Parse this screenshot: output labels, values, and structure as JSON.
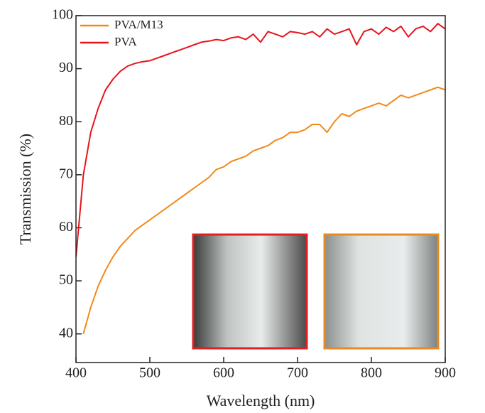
{
  "chart_data": {
    "type": "line",
    "x_label": "Wavelength (nm)",
    "y_label": "Transmission (%)",
    "x": [
      400,
      410,
      420,
      430,
      440,
      450,
      460,
      470,
      480,
      490,
      500,
      510,
      520,
      530,
      540,
      550,
      560,
      570,
      580,
      590,
      600,
      610,
      620,
      630,
      640,
      650,
      660,
      670,
      680,
      690,
      700,
      710,
      720,
      730,
      740,
      750,
      760,
      770,
      780,
      790,
      800,
      810,
      820,
      830,
      840,
      850,
      860,
      870,
      880,
      890,
      900
    ],
    "series": [
      {
        "name": "PVA/M13",
        "color": "#f28a1a",
        "values": [
          null,
          40,
          45,
          49,
          52,
          54.5,
          56.5,
          58,
          59.5,
          60.5,
          61.5,
          62.5,
          63.5,
          64.5,
          65.5,
          66.5,
          67.5,
          68.5,
          69.5,
          71,
          71.5,
          72.5,
          73,
          73.5,
          74.5,
          75,
          75.5,
          76.5,
          77,
          78,
          78,
          78.5,
          79.5,
          79.5,
          78,
          80,
          81.5,
          81,
          82,
          82.5,
          83,
          83.5,
          83,
          84,
          85,
          84.5,
          85,
          85.5,
          86,
          86.5,
          86
        ]
      },
      {
        "name": "PVA",
        "color": "#e8141c",
        "values": [
          54.5,
          70,
          78,
          82.5,
          86,
          88,
          89.5,
          90.5,
          91,
          91.3,
          91.5,
          92,
          92.5,
          93,
          93.5,
          94,
          94.5,
          95,
          95.2,
          95.5,
          95.3,
          95.8,
          96,
          95.5,
          96.5,
          95,
          97,
          96.5,
          96,
          97,
          96.8,
          96.5,
          97,
          96,
          97.5,
          96.5,
          97,
          97.5,
          94.5,
          97,
          97.5,
          96.5,
          97.8,
          97,
          98,
          96,
          97.5,
          98,
          97,
          98.5,
          97.5
        ]
      }
    ],
    "xlim": [
      400,
      900
    ],
    "xticks": [
      400,
      500,
      600,
      700,
      800,
      900
    ],
    "ylim": [
      34.6,
      100
    ],
    "yticks": [
      40,
      50,
      60,
      70,
      80,
      90,
      100
    ],
    "legend": "upper left"
  }
}
